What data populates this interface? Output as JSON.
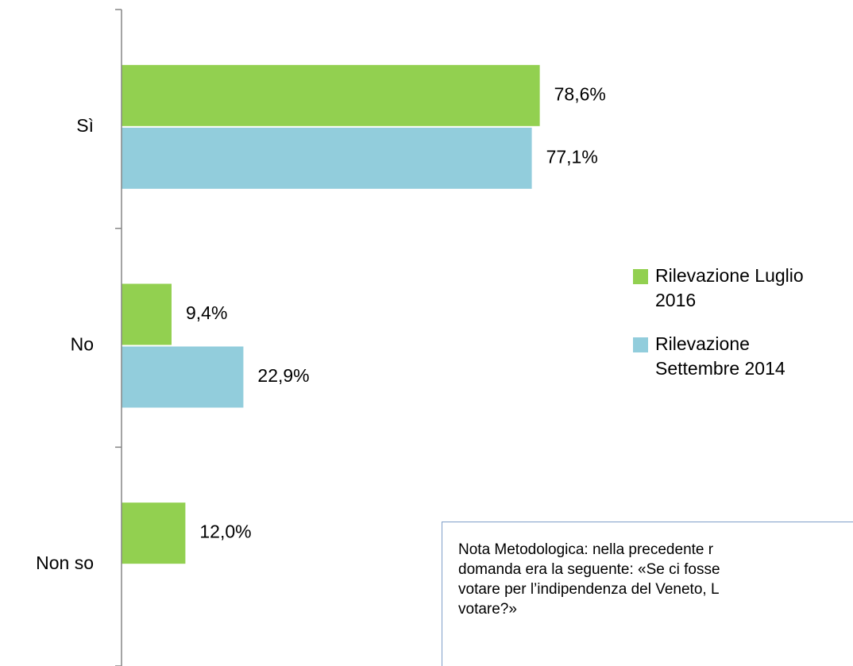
{
  "chart_data": {
    "type": "barh",
    "categories": [
      "Sì",
      "No",
      "Non so"
    ],
    "series": [
      {
        "name": "Rilevazione Luglio 2016",
        "color": "#92d050",
        "values": [
          78.6,
          9.4,
          12.0
        ],
        "value_labels": [
          "78,6%",
          "9,4%",
          "12,0%"
        ]
      },
      {
        "name": "Rilevazione Settembre 2014",
        "color": "#92cddc",
        "values": [
          77.1,
          22.9,
          null
        ],
        "value_labels": [
          "77,1%",
          "22,9%",
          null
        ]
      }
    ],
    "xlim": [
      0,
      100
    ],
    "legend": "right",
    "note": [
      "Nota Metodologica: nella precedente r",
      "domanda era la seguente: «Se ci fosse",
      "votare per l’indipendenza del Veneto, L",
      "votare?»"
    ]
  }
}
